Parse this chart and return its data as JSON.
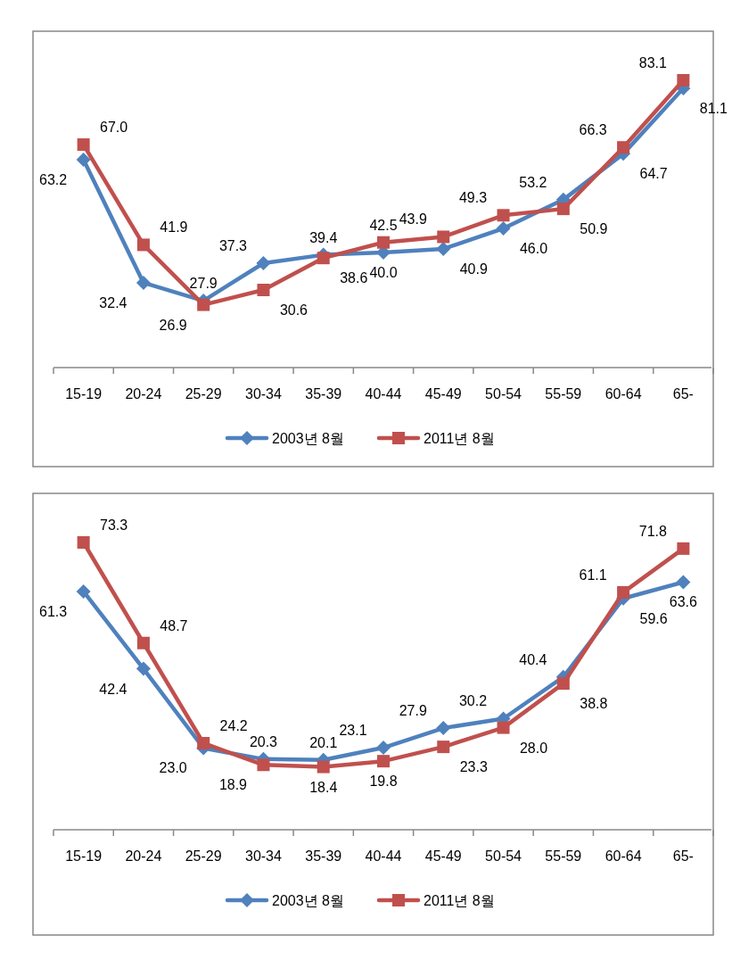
{
  "chart_data": [
    {
      "type": "line",
      "categories": [
        "15-19",
        "20-24",
        "25-29",
        "30-34",
        "35-39",
        "40-44",
        "45-49",
        "50-54",
        "55-59",
        "60-64",
        "65-"
      ],
      "legend": "bottom",
      "line_style": "solid",
      "series": [
        {
          "name": "2003년 8월",
          "color": "#4f81bd",
          "marker": "diamond",
          "values": [
            63.2,
            32.4,
            27.9,
            37.3,
            39.4,
            40.0,
            40.9,
            46.0,
            53.2,
            64.7,
            81.1
          ],
          "value_labels": [
            "63.2",
            "32.4",
            "27.9",
            "37.3",
            "39.4",
            "40.0",
            "40.9",
            "46.0",
            "53.2",
            "64.7",
            "81.1"
          ]
        },
        {
          "name": "2011년 8월",
          "color": "#c0504d",
          "marker": "square",
          "values": [
            67.0,
            41.9,
            26.9,
            30.6,
            38.6,
            42.5,
            43.9,
            49.3,
            50.9,
            66.3,
            83.1
          ],
          "value_labels": [
            "67.0",
            "41.9",
            "26.9",
            "30.6",
            "38.6",
            "42.5",
            "43.9",
            "49.3",
            "50.9",
            "66.3",
            "83.1"
          ]
        }
      ]
    },
    {
      "type": "line",
      "categories": [
        "15-19",
        "20-24",
        "25-29",
        "30-34",
        "35-39",
        "40-44",
        "45-49",
        "50-54",
        "55-59",
        "60-64",
        "65-"
      ],
      "legend": "bottom",
      "line_style": "solid",
      "series": [
        {
          "name": "2003년 8월",
          "color": "#4f81bd",
          "marker": "diamond",
          "values": [
            61.3,
            42.4,
            23.0,
            20.3,
            20.1,
            23.1,
            27.9,
            30.2,
            40.4,
            59.6,
            63.6
          ],
          "value_labels": [
            "61.3",
            "42.4",
            "23.0",
            "20.3",
            "20.1",
            "23.1",
            "27.9",
            "30.2",
            "40.4",
            "59.6",
            "63.6"
          ]
        },
        {
          "name": "2011년 8월",
          "color": "#c0504d",
          "marker": "square",
          "values": [
            73.3,
            48.7,
            24.2,
            18.9,
            18.4,
            19.8,
            23.3,
            28.0,
            38.8,
            61.1,
            71.8
          ],
          "value_labels": [
            "73.3",
            "48.7",
            "24.2",
            "18.9",
            "18.4",
            "19.8",
            "23.3",
            "28.0",
            "38.8",
            "61.1",
            "71.8"
          ]
        }
      ]
    }
  ]
}
